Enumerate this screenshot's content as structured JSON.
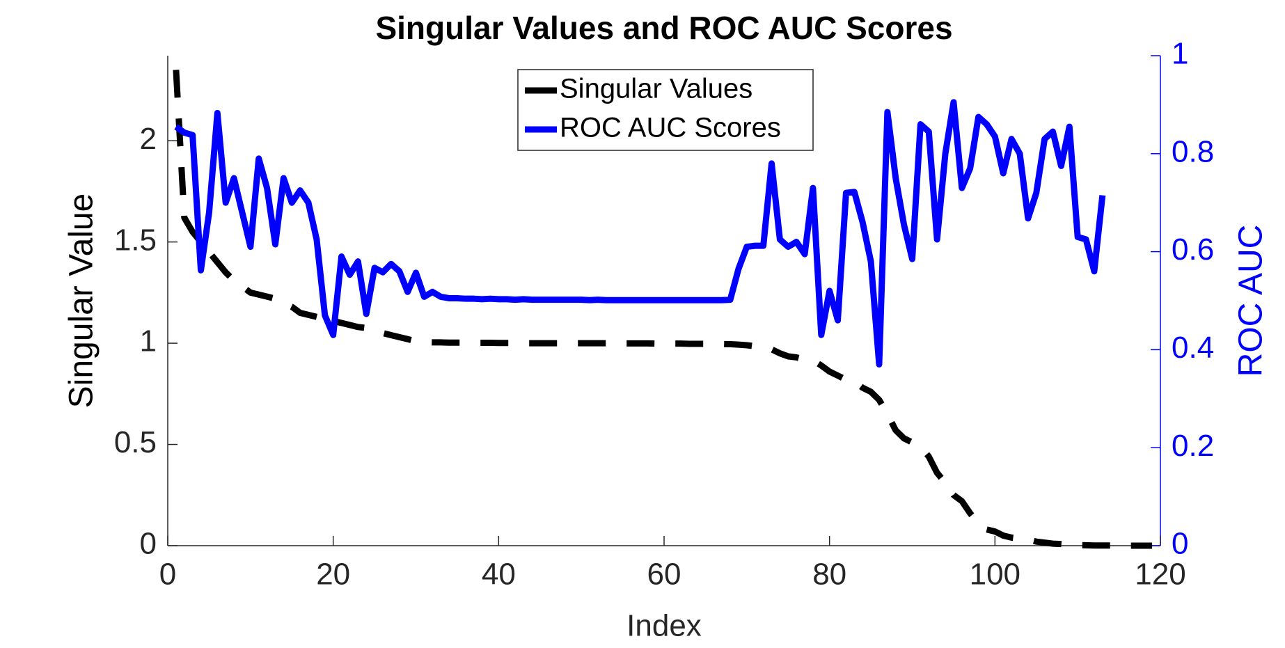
{
  "chart_data": {
    "type": "line",
    "title": "Singular Values and ROC AUC Scores",
    "x_label": "Index",
    "y_label": "Singular Value",
    "y2_label": "ROC AUC",
    "x": [
      1,
      2,
      3,
      4,
      5,
      6,
      7,
      8,
      9,
      10,
      11,
      12,
      13,
      14,
      15,
      16,
      17,
      18,
      19,
      20,
      21,
      22,
      23,
      24,
      25,
      26,
      27,
      28,
      29,
      30,
      31,
      32,
      33,
      34,
      35,
      36,
      37,
      38,
      39,
      40,
      41,
      42,
      43,
      44,
      45,
      46,
      47,
      48,
      49,
      50,
      51,
      52,
      53,
      54,
      55,
      56,
      57,
      58,
      59,
      60,
      61,
      62,
      63,
      64,
      65,
      66,
      67,
      68,
      69,
      70,
      71,
      72,
      73,
      74,
      75,
      76,
      77,
      78,
      79,
      80,
      81,
      82,
      83,
      84,
      85,
      86,
      87,
      88,
      89,
      90,
      91,
      92,
      93,
      94,
      95,
      96,
      97,
      98,
      99,
      100,
      101,
      102,
      103,
      104,
      105,
      106,
      107,
      108,
      109,
      110,
      111,
      112,
      113,
      114,
      115,
      116,
      117,
      118,
      119
    ],
    "series": [
      {
        "name": "Singular Values",
        "color": "#000000",
        "dashed": true,
        "values": [
          2.35,
          1.62,
          1.55,
          1.5,
          1.45,
          1.4,
          1.35,
          1.31,
          1.28,
          1.25,
          1.24,
          1.23,
          1.22,
          1.2,
          1.18,
          1.15,
          1.14,
          1.13,
          1.12,
          1.11,
          1.1,
          1.09,
          1.08,
          1.075,
          1.07,
          1.05,
          1.04,
          1.03,
          1.02,
          1.01,
          1.005,
          1.004,
          1.004,
          1.003,
          1.003,
          1.003,
          1.002,
          1.002,
          1.002,
          1.001,
          1.001,
          1.001,
          1.0,
          1.0,
          1.0,
          1.0,
          1.0,
          1.0,
          1.0,
          1.0,
          1.0,
          1.0,
          1.0,
          0.999,
          0.999,
          0.999,
          0.999,
          0.999,
          0.998,
          0.998,
          0.998,
          0.998,
          0.997,
          0.997,
          0.997,
          0.996,
          0.996,
          0.995,
          0.993,
          0.99,
          0.985,
          0.98,
          0.97,
          0.95,
          0.935,
          0.93,
          0.92,
          0.915,
          0.89,
          0.86,
          0.84,
          0.82,
          0.81,
          0.78,
          0.76,
          0.72,
          0.65,
          0.57,
          0.53,
          0.51,
          0.49,
          0.44,
          0.36,
          0.31,
          0.25,
          0.22,
          0.16,
          0.11,
          0.08,
          0.07,
          0.05,
          0.04,
          0.035,
          0.03,
          0.02,
          0.015,
          0.01,
          0.008,
          0.005,
          0.003,
          0.002,
          0.001,
          0.001,
          0.001,
          0.0,
          0.0,
          0.0,
          0.0,
          0.0
        ]
      },
      {
        "name": "ROC AUC Scores",
        "color": "#0000ff",
        "axis": "y2",
        "values": [
          0.855,
          0.843,
          0.838,
          0.562,
          0.68,
          0.883,
          0.7,
          0.75,
          0.68,
          0.61,
          0.79,
          0.73,
          0.615,
          0.75,
          0.7,
          0.725,
          0.7,
          0.625,
          0.47,
          0.43,
          0.59,
          0.553,
          0.58,
          0.473,
          0.567,
          0.558,
          0.575,
          0.56,
          0.518,
          0.557,
          0.508,
          0.518,
          0.508,
          0.505,
          0.505,
          0.504,
          0.504,
          0.503,
          0.504,
          0.503,
          0.503,
          0.502,
          0.503,
          0.502,
          0.502,
          0.502,
          0.502,
          0.502,
          0.502,
          0.502,
          0.501,
          0.502,
          0.501,
          0.501,
          0.501,
          0.501,
          0.501,
          0.501,
          0.501,
          0.501,
          0.501,
          0.501,
          0.501,
          0.501,
          0.501,
          0.501,
          0.501,
          0.502,
          0.565,
          0.61,
          0.612,
          0.612,
          0.78,
          0.625,
          0.61,
          0.62,
          0.595,
          0.73,
          0.43,
          0.52,
          0.46,
          0.72,
          0.722,
          0.66,
          0.58,
          0.37,
          0.885,
          0.75,
          0.655,
          0.585,
          0.86,
          0.845,
          0.625,
          0.8,
          0.905,
          0.73,
          0.77,
          0.875,
          0.86,
          0.835,
          0.76,
          0.83,
          0.8,
          0.668,
          0.72,
          0.83,
          0.845,
          0.775,
          0.855,
          0.63,
          0.625,
          0.56,
          0.715,
          null,
          null,
          null,
          null,
          null,
          null
        ]
      }
    ],
    "xlim": [
      0,
      120
    ],
    "xticks": [
      0,
      20,
      40,
      60,
      80,
      100,
      120
    ],
    "ylim": [
      0,
      2.42
    ],
    "yticks": [
      0,
      0.5,
      1,
      1.5,
      2
    ],
    "y2lim": [
      0,
      1
    ],
    "y2ticks": [
      0,
      0.2,
      0.4,
      0.6,
      0.8,
      1
    ],
    "legend": "top"
  }
}
